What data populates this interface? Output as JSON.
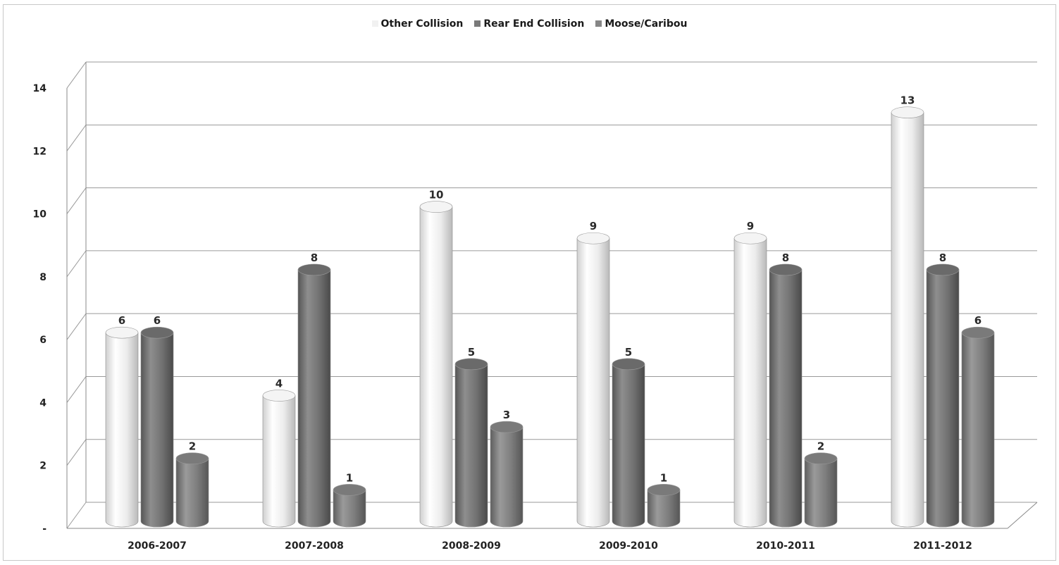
{
  "colors": {
    "other": "#f1f1f1",
    "rear": "#7a7a7a",
    "moose": "#868686",
    "gridline": "#9a9a9a",
    "text": "#222222"
  },
  "chart_data": {
    "type": "bar",
    "style": "3d-cylinder",
    "categories": [
      "2006-2007",
      "2007-2008",
      "2008-2009",
      "2009-2010",
      "2010-2011",
      "2011-2012"
    ],
    "series": [
      {
        "name": "Other Collision",
        "values": [
          6,
          4,
          10,
          9,
          9,
          13
        ]
      },
      {
        "name": "Rear End Collision",
        "values": [
          6,
          8,
          5,
          5,
          8,
          8
        ]
      },
      {
        "name": "Moose/Caribou",
        "values": [
          2,
          1,
          3,
          1,
          2,
          6
        ]
      }
    ],
    "y_tick_labels": [
      "-",
      "2",
      "4",
      "6",
      "8",
      "10",
      "12",
      "14"
    ],
    "ylim": [
      0,
      14
    ],
    "grid": true,
    "legend_position": "top"
  }
}
